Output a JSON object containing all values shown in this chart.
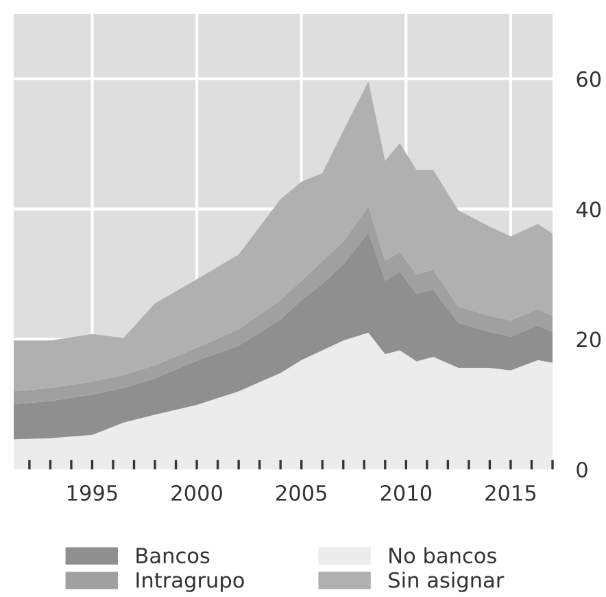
{
  "chart_data": {
    "type": "area",
    "stacked": true,
    "x": [
      1991.25,
      1993,
      1995,
      1996.5,
      1998,
      2000,
      2002,
      2004,
      2005,
      2006,
      2007,
      2008.2,
      2009,
      2009.7,
      2010.5,
      2011.3,
      2012.5,
      2014,
      2015,
      2016.3,
      2017
    ],
    "series": [
      {
        "name": "No bancos",
        "color": "#ececec",
        "values": [
          4.6,
          4.8,
          5.3,
          7.2,
          8.4,
          9.9,
          12,
          14.8,
          16.8,
          18.3,
          19.8,
          21,
          17.7,
          18.3,
          16.6,
          17.3,
          15.6,
          15.6,
          15.2,
          16.8,
          16.4
        ]
      },
      {
        "name": "Bancos",
        "color": "#8f8f8f",
        "values": [
          5.4,
          5.7,
          6.2,
          5.3,
          5.6,
          6.8,
          7,
          8.2,
          9.2,
          10.2,
          11.7,
          15.4,
          11.3,
          12.1,
          10.4,
          10.3,
          6.9,
          5.5,
          5.2,
          5.3,
          4.7
        ]
      },
      {
        "name": "Intragrupo",
        "color": "#a0a0a0",
        "values": [
          2,
          2,
          2,
          2,
          2,
          2,
          2.5,
          3,
          3,
          3.5,
          3.5,
          4,
          3,
          3,
          3,
          3,
          2.5,
          2.5,
          2.5,
          2.5,
          2.5
        ]
      },
      {
        "name": "Sin asignar",
        "color": "#b0b0b0",
        "values": [
          7.8,
          7.3,
          7.3,
          5.7,
          9.5,
          10.5,
          11.5,
          15.5,
          15.2,
          13.5,
          17,
          19.2,
          15.4,
          16.7,
          16,
          15.4,
          14.8,
          13.7,
          12.9,
          13.1,
          12.6
        ]
      }
    ],
    "xlim": [
      1991.25,
      2017
    ],
    "xticks": [
      {
        "value": 1992,
        "label": null
      },
      {
        "value": 1993,
        "label": null
      },
      {
        "value": 1994,
        "label": null
      },
      1995,
      {
        "value": 1996,
        "label": null
      },
      {
        "value": 1997,
        "label": null
      },
      {
        "value": 1998,
        "label": null
      },
      {
        "value": 1999,
        "label": null
      },
      2000,
      {
        "value": 2001,
        "label": null
      },
      {
        "value": 2002,
        "label": null
      },
      {
        "value": 2003,
        "label": null
      },
      {
        "value": 2004,
        "label": null
      },
      2005,
      {
        "value": 2006,
        "label": null
      },
      {
        "value": 2007,
        "label": null
      },
      {
        "value": 2008,
        "label": null
      },
      {
        "value": 2009,
        "label": null
      },
      2010,
      {
        "value": 2011,
        "label": null
      },
      {
        "value": 2012,
        "label": null
      },
      {
        "value": 2013,
        "label": null
      },
      {
        "value": 2014,
        "label": null
      },
      2015,
      {
        "value": 2016,
        "label": null
      },
      {
        "value": 2017,
        "label": null
      }
    ],
    "ylim": [
      0,
      70
    ],
    "yticks": [
      0,
      20,
      40,
      60
    ],
    "grid": true,
    "legend": "bottom"
  }
}
